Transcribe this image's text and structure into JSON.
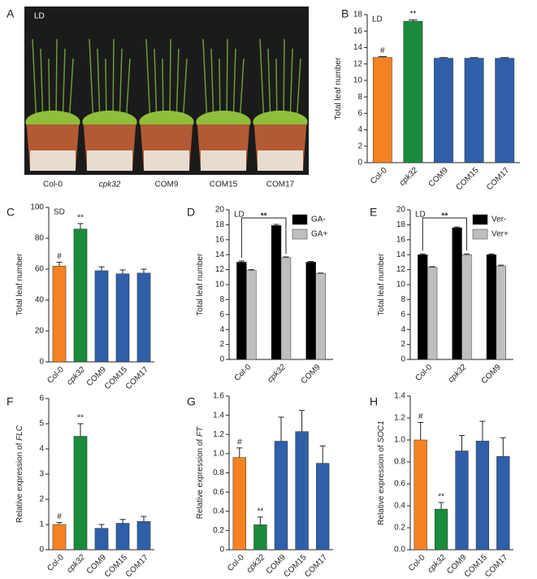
{
  "chart_data": [
    {
      "type": "photo",
      "panel": "A",
      "label": "LD",
      "categories": [
        "Col-0",
        "cpk32",
        "COM9",
        "COM15",
        "COM17"
      ],
      "italic_categories": [
        false,
        true,
        false,
        false,
        false
      ]
    },
    {
      "type": "bar",
      "panel": "B",
      "annotation": "LD",
      "ylabel": "Total leaf number",
      "categories": [
        "Col-0",
        "cpk32",
        "COM9",
        "COM15",
        "COM17"
      ],
      "italic_categories": [
        false,
        true,
        false,
        false,
        false
      ],
      "values": [
        12.8,
        17.2,
        12.7,
        12.7,
        12.7
      ],
      "errors": [
        0.1,
        0.15,
        0.08,
        0.08,
        0.08
      ],
      "colors": [
        "#f58220",
        "#1a8a3c",
        "#2f5fa8",
        "#2f5fa8",
        "#2f5fa8"
      ],
      "sig": [
        "#",
        "**",
        null,
        null,
        null
      ],
      "ylim": [
        0,
        18
      ],
      "yticks": [
        0,
        2,
        4,
        6,
        8,
        10,
        12,
        14,
        16,
        18
      ]
    },
    {
      "type": "bar",
      "panel": "C",
      "annotation": "SD",
      "ylabel": "Total leaf number",
      "categories": [
        "Col-0",
        "cpk32",
        "COM9",
        "COM15",
        "COM17"
      ],
      "italic_categories": [
        false,
        true,
        false,
        false,
        false
      ],
      "values": [
        62,
        86,
        59,
        57,
        57.5
      ],
      "errors": [
        2.5,
        3.5,
        2.5,
        2.5,
        2.5
      ],
      "colors": [
        "#f58220",
        "#1a8a3c",
        "#2f5fa8",
        "#2f5fa8",
        "#2f5fa8"
      ],
      "sig": [
        "#",
        "**",
        null,
        null,
        null
      ],
      "ylim": [
        0,
        100
      ],
      "yticks": [
        0,
        20,
        40,
        60,
        80,
        100
      ]
    },
    {
      "type": "grouped",
      "panel": "D",
      "annotation": "LD",
      "ylabel": "Total leaf number",
      "bracket_label": "**",
      "categories": [
        "Col-0",
        "cpk32",
        "COM9"
      ],
      "italic_categories": [
        false,
        true,
        false
      ],
      "series": [
        {
          "name": "GA-",
          "color": "#000000",
          "values": [
            13,
            17.9,
            13
          ],
          "errors": [
            0.15,
            0.15,
            0.1
          ]
        },
        {
          "name": "GA+",
          "color": "#bfbfbf",
          "values": [
            11.9,
            13.6,
            11.5
          ],
          "errors": [
            0.1,
            0.1,
            0.05
          ]
        }
      ],
      "legend": "upper right",
      "ylim": [
        0,
        20
      ],
      "yticks": [
        0,
        2,
        4,
        6,
        8,
        10,
        12,
        14,
        16,
        18,
        20
      ]
    },
    {
      "type": "grouped",
      "panel": "E",
      "annotation": "LD",
      "ylabel": "Total leaf number",
      "bracket_label": "**",
      "categories": [
        "Col-0",
        "cpk32",
        "COM9"
      ],
      "italic_categories": [
        false,
        true,
        false
      ],
      "series": [
        {
          "name": "Ver-",
          "color": "#000000",
          "values": [
            14,
            17.6,
            14
          ],
          "errors": [
            0.1,
            0.1,
            0.1
          ]
        },
        {
          "name": "Ver+",
          "color": "#bfbfbf",
          "values": [
            12.3,
            14,
            12.5
          ],
          "errors": [
            0.1,
            0.1,
            0.1
          ]
        }
      ],
      "legend": "upper right",
      "ylim": [
        0,
        20
      ],
      "yticks": [
        0,
        2,
        4,
        6,
        8,
        10,
        12,
        14,
        16,
        18,
        20
      ]
    },
    {
      "type": "bar",
      "panel": "F",
      "ylabel": "Relative expression of",
      "ylabel_gene": "FLC",
      "categories": [
        "Col-0",
        "cpk32",
        "COM9",
        "COM15",
        "COM17"
      ],
      "italic_categories": [
        false,
        true,
        false,
        false,
        false
      ],
      "values": [
        1,
        4.5,
        0.85,
        1.05,
        1.12
      ],
      "errors": [
        0.08,
        0.5,
        0.15,
        0.15,
        0.2
      ],
      "colors": [
        "#f58220",
        "#1a8a3c",
        "#2f5fa8",
        "#2f5fa8",
        "#2f5fa8"
      ],
      "sig": [
        "#",
        "**",
        null,
        null,
        null
      ],
      "ylim": [
        0,
        6
      ],
      "yticks": [
        0,
        1,
        2,
        3,
        4,
        5,
        6
      ]
    },
    {
      "type": "bar",
      "panel": "G",
      "ylabel": "Relative expression of",
      "ylabel_gene": "FT",
      "categories": [
        "Col-0",
        "cpk32",
        "COM9",
        "COM15",
        "COM17"
      ],
      "italic_categories": [
        false,
        true,
        false,
        false,
        false
      ],
      "values": [
        0.96,
        0.26,
        1.13,
        1.23,
        0.9
      ],
      "errors": [
        0.1,
        0.08,
        0.25,
        0.22,
        0.18
      ],
      "colors": [
        "#f58220",
        "#1a8a3c",
        "#2f5fa8",
        "#2f5fa8",
        "#2f5fa8"
      ],
      "sig": [
        "#",
        "**",
        null,
        null,
        null
      ],
      "ylim": [
        0,
        1.6
      ],
      "yticks": [
        0,
        0.2,
        0.4,
        0.6,
        0.8,
        {
          "value": 1,
          "label": "1.0"
        },
        1.2,
        1.4,
        1.6
      ]
    },
    {
      "type": "bar",
      "panel": "H",
      "ylabel": "Relative expression of",
      "ylabel_gene": "SOC1",
      "categories": [
        "Col-0",
        "cpk32",
        "COM9",
        "COM15",
        "COM17"
      ],
      "italic_categories": [
        false,
        true,
        false,
        false,
        false
      ],
      "values": [
        1.0,
        0.37,
        0.9,
        0.99,
        0.85
      ],
      "errors": [
        0.16,
        0.06,
        0.14,
        0.18,
        0.17
      ],
      "colors": [
        "#f58220",
        "#1a8a3c",
        "#2f5fa8",
        "#2f5fa8",
        "#2f5fa8"
      ],
      "sig": [
        "#",
        "**",
        null,
        null,
        null
      ],
      "ylim": [
        0,
        1.4
      ],
      "yticks": [
        {
          "value": 0,
          "label": "0.0"
        },
        0.2,
        0.4,
        0.6,
        0.8,
        {
          "value": 1,
          "label": "1.0"
        },
        1.2,
        1.4
      ]
    }
  ]
}
